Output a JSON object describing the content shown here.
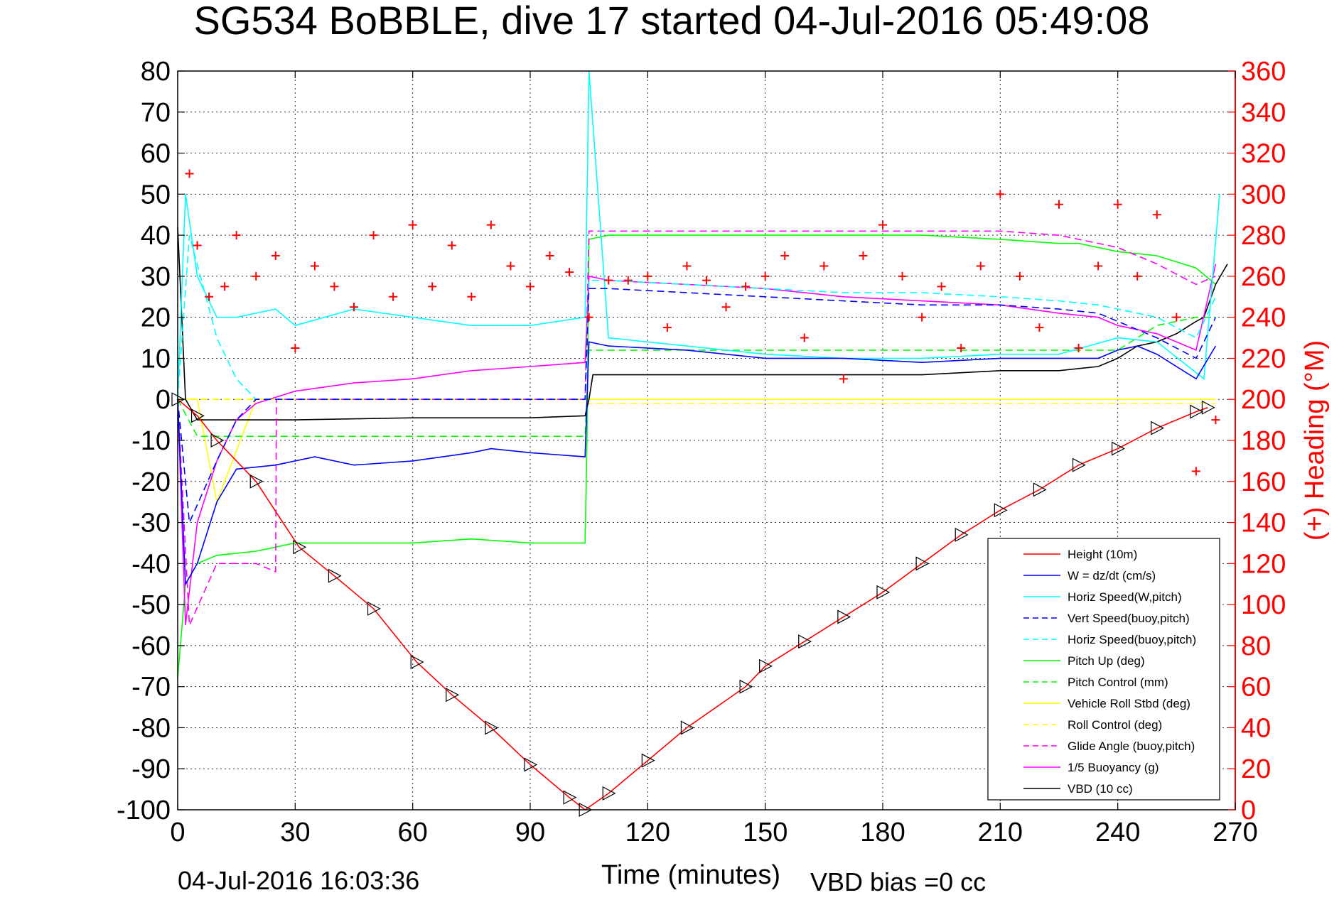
{
  "title": "SG534 BoBBLE, dive 17 started 04-Jul-2016 05:49:08",
  "footer": {
    "timestamp": "04-Jul-2016 16:03:36",
    "vbd_bias": "VBD bias =0 cc"
  },
  "colors": {
    "height": "#ff0000",
    "w": "#0000ff",
    "horiz_speed": "#00ffff",
    "vert_speed_buoy": "#0000ff",
    "horiz_speed_buoy": "#00ffff",
    "pitch_up": "#00ff00",
    "pitch_control": "#00ff00",
    "roll": "#ffff00",
    "roll_control": "#ffff00",
    "glide_angle": "#ff00ff",
    "buoyancy": "#ff00ff",
    "vbd": "#000000",
    "heading": "#ff0000",
    "grid": "#333333"
  },
  "chart_data": {
    "type": "line",
    "title": "SG534 BoBBLE, dive 17 started 04-Jul-2016 05:49:08",
    "xlabel": "Time (minutes)",
    "ylabel": "",
    "y2label": "(+) Heading (°M)",
    "xlim": [
      0,
      270
    ],
    "ylim": [
      -100,
      80
    ],
    "y2lim": [
      0,
      360
    ],
    "grid": true,
    "legend_position": "bottom-right",
    "x_ticks": [
      "0",
      "30",
      "60",
      "90",
      "120",
      "150",
      "180",
      "210",
      "240",
      "270"
    ],
    "y_ticks": [
      "80",
      "70",
      "60",
      "50",
      "40",
      "30",
      "20",
      "10",
      "0",
      "-10",
      "-20",
      "-30",
      "-40",
      "-50",
      "-60",
      "-70",
      "-80",
      "-90",
      "-100"
    ],
    "y2_ticks": [
      "360",
      "340",
      "320",
      "300",
      "280",
      "260",
      "240",
      "220",
      "200",
      "180",
      "160",
      "140",
      "120",
      "100",
      "80",
      "60",
      "40",
      "20",
      "0"
    ],
    "series": [
      {
        "name": "Height (10m)",
        "color": "#ff0000",
        "style": "solid",
        "marker": "triangle",
        "x": [
          0,
          5,
          10,
          20,
          31,
          40,
          50,
          61,
          70,
          80,
          90,
          100,
          104,
          110,
          120,
          130,
          145,
          150,
          160,
          170,
          180,
          190,
          200,
          210,
          220,
          230,
          240,
          250,
          260,
          263
        ],
        "y": [
          0,
          -4,
          -10,
          -20,
          -36,
          -43,
          -51,
          -64,
          -72,
          -80,
          -89,
          -97,
          -100,
          -96,
          -88,
          -80,
          -70,
          -65,
          -59,
          -53,
          -47,
          -40,
          -33,
          -27,
          -22,
          -16,
          -12,
          -7,
          -3,
          -2
        ]
      },
      {
        "name": "W = dz/dt (cm/s)",
        "color": "#0000ff",
        "style": "solid",
        "x": [
          0,
          2,
          5,
          10,
          15,
          25,
          35,
          45,
          60,
          75,
          80,
          90,
          104,
          105,
          110,
          130,
          150,
          170,
          190,
          210,
          225,
          235,
          240,
          245,
          250,
          255,
          260,
          265
        ],
        "y": [
          0,
          -45,
          -40,
          -25,
          -17,
          -16,
          -14,
          -16,
          -15,
          -13,
          -12,
          -13,
          -14,
          14,
          13,
          12,
          10,
          10,
          9,
          10,
          10,
          10,
          12,
          13,
          11,
          8,
          5,
          13
        ]
      },
      {
        "name": "Horiz Speed(W,pitch)",
        "color": "#00ffff",
        "style": "solid",
        "x": [
          0,
          2,
          5,
          10,
          15,
          25,
          30,
          45,
          60,
          75,
          90,
          104,
          105,
          110,
          130,
          150,
          170,
          190,
          210,
          225,
          240,
          250,
          258,
          262,
          266
        ],
        "y": [
          0,
          50,
          30,
          20,
          20,
          22,
          18,
          22,
          20,
          18,
          18,
          20,
          80,
          15,
          13,
          11,
          10,
          10,
          11,
          11,
          15,
          14,
          8,
          5,
          50
        ]
      },
      {
        "name": "Vert Speed(buoy,pitch)",
        "color": "#0000ff",
        "style": "dash",
        "x": [
          0,
          3,
          10,
          15,
          20,
          25,
          104,
          105,
          110,
          130,
          150,
          170,
          190,
          210,
          225,
          235,
          240,
          250,
          260,
          265
        ],
        "y": [
          0,
          -30,
          -15,
          -5,
          0,
          0,
          0,
          27,
          27,
          26,
          25,
          24,
          23,
          23,
          22,
          21,
          19,
          15,
          10,
          20
        ]
      },
      {
        "name": "Horiz Speed(buoy,pitch)",
        "color": "#00ffff",
        "style": "dash",
        "x": [
          0,
          3,
          10,
          15,
          20,
          25,
          104,
          105,
          110,
          130,
          150,
          170,
          190,
          210,
          225,
          235,
          240,
          250,
          260,
          265
        ],
        "y": [
          0,
          40,
          15,
          5,
          0,
          0,
          0,
          29,
          29,
          28,
          27,
          26,
          26,
          25,
          24,
          23,
          22,
          20,
          15,
          25
        ]
      },
      {
        "name": "Pitch Up (deg)",
        "color": "#00ff00",
        "style": "solid",
        "x": [
          0,
          2,
          5,
          10,
          20,
          30,
          45,
          60,
          75,
          90,
          104,
          104.5,
          105,
          110,
          130,
          150,
          170,
          190,
          210,
          225,
          230,
          240,
          250,
          260,
          265
        ],
        "y": [
          -68,
          -45,
          -40,
          -38,
          -37,
          -35,
          -35,
          -35,
          -34,
          -35,
          -35,
          -10,
          39,
          40,
          40,
          40,
          40,
          40,
          39,
          38,
          38,
          36,
          35,
          32,
          28
        ]
      },
      {
        "name": "Pitch Control (mm)",
        "color": "#00ff00",
        "style": "dash",
        "x": [
          0,
          5,
          10,
          20,
          30,
          60,
          90,
          104,
          105,
          110,
          130,
          150,
          180,
          210,
          240,
          250,
          260,
          265
        ],
        "y": [
          0,
          -9,
          -9,
          -9,
          -9,
          -9,
          -9,
          -9,
          12,
          12,
          12,
          12,
          12,
          12,
          12,
          18,
          20,
          20
        ]
      },
      {
        "name": "Vehicle Roll Stbd (deg)",
        "color": "#ffff00",
        "style": "solid",
        "x": [
          0,
          5,
          10,
          20,
          30,
          40,
          60,
          80,
          104,
          105,
          110,
          130,
          150,
          170,
          190,
          210,
          230,
          250,
          265
        ],
        "y": [
          0,
          0,
          -25,
          0,
          0,
          0,
          0,
          0,
          0,
          0,
          0,
          0,
          0,
          0,
          0,
          0,
          0,
          0,
          0
        ]
      },
      {
        "name": "Roll Control (deg)",
        "color": "#ffff00",
        "style": "dash",
        "x": [
          0,
          30,
          60,
          90,
          104,
          105,
          130,
          160,
          190,
          220,
          250,
          265
        ],
        "y": [
          0,
          0,
          0,
          0,
          0,
          -1,
          -1,
          -1,
          -1,
          -1,
          -1,
          -1
        ]
      },
      {
        "name": "Glide Angle (buoy,pitch)",
        "color": "#ff00ff",
        "style": "dash",
        "x": [
          0,
          3,
          10,
          15,
          20,
          25,
          25.2,
          104,
          105,
          110,
          130,
          150,
          170,
          190,
          210,
          225,
          240,
          250,
          260,
          265
        ],
        "y": [
          0,
          -55,
          -40,
          -40,
          -40,
          -42,
          0,
          0,
          41,
          41,
          41,
          41,
          41,
          41,
          41,
          40,
          37,
          33,
          28,
          30
        ]
      },
      {
        "name": "1/5 Buoyancy (g)",
        "color": "#ff00ff",
        "style": "solid",
        "x": [
          0,
          2,
          5,
          10,
          15,
          20,
          30,
          45,
          60,
          75,
          90,
          104,
          105,
          110,
          130,
          150,
          170,
          190,
          210,
          225,
          235,
          240,
          250,
          260,
          265
        ],
        "y": [
          0,
          -55,
          -30,
          -15,
          -5,
          -1,
          2,
          4,
          5,
          7,
          8,
          9,
          30,
          29,
          28,
          27,
          25,
          24,
          23,
          21,
          20,
          18,
          16,
          12,
          33
        ]
      },
      {
        "name": "VBD (10 cc)",
        "color": "#000000",
        "style": "solid",
        "x": [
          0,
          2,
          5,
          30,
          60,
          90,
          104,
          105,
          106,
          130,
          160,
          190,
          210,
          225,
          235,
          240,
          245,
          250,
          255,
          260,
          262,
          265,
          268
        ],
        "y": [
          42,
          0,
          -5,
          -5,
          -4.5,
          -4.5,
          -4,
          0,
          6,
          6,
          6,
          6,
          7,
          7,
          8,
          10,
          13,
          14,
          16,
          19,
          20,
          28,
          33
        ]
      },
      {
        "name": "Heading (°M)",
        "axis": "right",
        "color": "#ff0000",
        "style": "marker",
        "marker": "plus",
        "x": [
          3,
          5,
          8,
          12,
          15,
          20,
          25,
          30,
          35,
          40,
          45,
          50,
          55,
          60,
          65,
          70,
          75,
          80,
          85,
          90,
          95,
          100,
          105,
          110,
          115,
          120,
          125,
          130,
          135,
          140,
          145,
          150,
          155,
          160,
          165,
          170,
          175,
          180,
          185,
          190,
          195,
          200,
          205,
          210,
          215,
          220,
          225,
          230,
          235,
          240,
          245,
          250,
          255,
          260,
          265
        ],
        "y": [
          310,
          275,
          250,
          255,
          280,
          260,
          270,
          225,
          265,
          255,
          245,
          280,
          250,
          285,
          255,
          275,
          250,
          285,
          265,
          255,
          270,
          262,
          240,
          258,
          258,
          260,
          235,
          265,
          258,
          245,
          255,
          260,
          270,
          230,
          265,
          210,
          270,
          285,
          260,
          240,
          255,
          225,
          265,
          300,
          260,
          235,
          295,
          225,
          265,
          295,
          260,
          290,
          240,
          165,
          190
        ]
      }
    ]
  }
}
